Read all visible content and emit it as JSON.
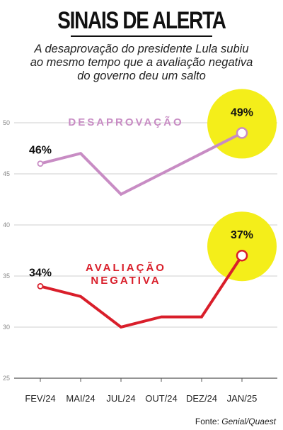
{
  "title": "SINAIS DE ALERTA",
  "subtitle_lines": [
    "A desaprovação do presidente Lula subiu",
    "ao mesmo tempo que a avaliação negativa",
    "do governo deu um salto"
  ],
  "source": {
    "prefix": "Fonte: ",
    "name": "Genial/Quaest"
  },
  "colors": {
    "desaprovacao": "#c88cc4",
    "avaliacao_negativa": "#d91e2a",
    "highlight": "#f4ee1a",
    "grid": "#cfcfcf",
    "axis": "#555555"
  },
  "chart_data": {
    "type": "line",
    "categories": [
      "FEV/24",
      "MAI/24",
      "JUL/24",
      "OUT/24",
      "DEZ/24",
      "JAN/25"
    ],
    "series": [
      {
        "name": "DESAPROVAÇÃO",
        "values": [
          46,
          47,
          43,
          45,
          47,
          49
        ],
        "labels": {
          "first": "46%",
          "last": "49%"
        }
      },
      {
        "name": "AVALIAÇÃO NEGATIVA",
        "name_lines": [
          "AVALIAÇÃO",
          "NEGATIVA"
        ],
        "values": [
          34,
          33,
          30,
          31,
          31,
          37
        ],
        "labels": {
          "first": "34%",
          "last": "37%"
        }
      }
    ],
    "y_ticks": [
      25,
      30,
      35,
      40,
      45,
      50
    ],
    "ylim": [
      25,
      50
    ],
    "grid": true,
    "legend": "inline"
  }
}
